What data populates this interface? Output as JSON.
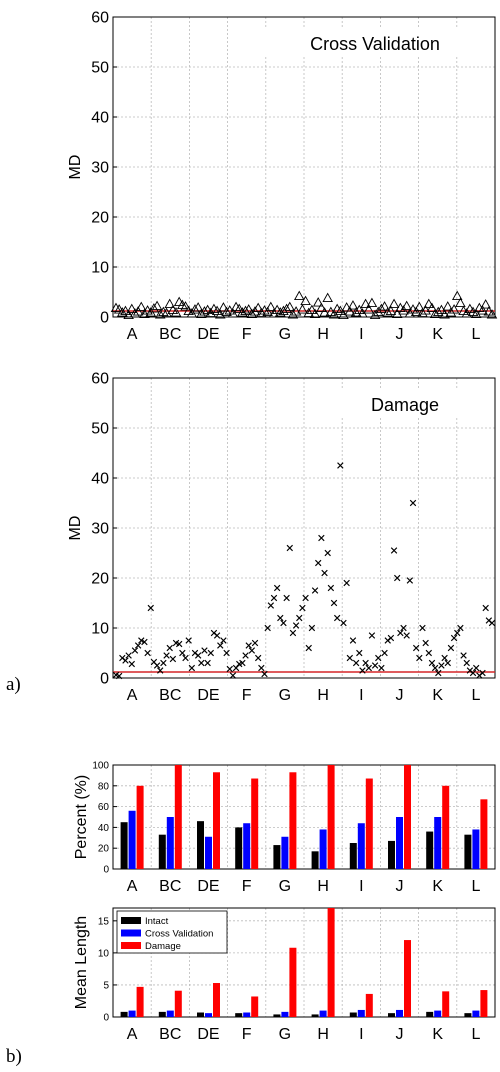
{
  "panel_labels": {
    "a": "a)",
    "b": "b)"
  },
  "colors": {
    "threshold": "#d62728",
    "intact": "#000000",
    "cross_validation": "#0000ff",
    "damage": "#ff0000",
    "grid": "#bbbbbb"
  },
  "chart_data": [
    {
      "type": "scatter",
      "title": "Cross Validation",
      "ylabel": "MD",
      "ylim": [
        0,
        60
      ],
      "yticks": [
        0,
        10,
        20,
        30,
        40,
        50,
        60
      ],
      "categories": [
        "A",
        "BC",
        "DE",
        "F",
        "G",
        "H",
        "I",
        "J",
        "K",
        "L"
      ],
      "grid": true,
      "marker": "triangle",
      "threshold": 1.2,
      "x": [
        1,
        2,
        3,
        4,
        5,
        6,
        7,
        8,
        9,
        10,
        11,
        12,
        13,
        14,
        15,
        16,
        17,
        18,
        19,
        20,
        21,
        22,
        23,
        24,
        25,
        26,
        27,
        28,
        29,
        30,
        31,
        32,
        33,
        34,
        35,
        36,
        37,
        38,
        39,
        40,
        41,
        42,
        43,
        44,
        45,
        46,
        47,
        48,
        49,
        50,
        51,
        52,
        53,
        54,
        55,
        56,
        57,
        58,
        59,
        60,
        61,
        62,
        63,
        64,
        65,
        66,
        67,
        68,
        69,
        70,
        71,
        72,
        73,
        74,
        75,
        76,
        77,
        78,
        79,
        80,
        81,
        82,
        83,
        84,
        85,
        86,
        87,
        88,
        89,
        90,
        91,
        92,
        93,
        94,
        95,
        96,
        97,
        98,
        99,
        100,
        101,
        102,
        103,
        104,
        105,
        106,
        107,
        108,
        109,
        110,
        111,
        112,
        113,
        114,
        115,
        116,
        117,
        118,
        119,
        120
      ],
      "y": [
        1.8,
        1.5,
        0.9,
        1.2,
        0.4,
        1.6,
        0.7,
        1.1,
        2.0,
        0.6,
        1.3,
        0.9,
        1.7,
        2.2,
        0.5,
        1.0,
        0.8,
        2.6,
        1.4,
        0.9,
        3.0,
        2.4,
        2.1,
        1.2,
        0.7,
        1.5,
        1.9,
        0.6,
        1.1,
        1.4,
        0.8,
        1.6,
        1.2,
        0.5,
        1.9,
        1.0,
        1.3,
        0.7,
        2.0,
        1.6,
        0.9,
        1.2,
        1.5,
        0.6,
        1.1,
        1.8,
        0.8,
        1.3,
        1.0,
        2.0,
        0.7,
        1.4,
        0.9,
        1.2,
        1.6,
        2.0,
        0.5,
        1.1,
        4.2,
        1.5,
        3.2,
        0.8,
        1.4,
        0.6,
        2.9,
        1.8,
        0.9,
        3.8,
        1.0,
        0.5,
        1.6,
        1.2,
        0.4,
        1.9,
        1.1,
        2.3,
        0.9,
        1.4,
        0.7,
        2.6,
        1.5,
        2.8,
        0.4,
        1.0,
        1.6,
        2.1,
        0.9,
        1.2,
        2.6,
        0.6,
        1.8,
        1.3,
        2.2,
        0.7,
        1.5,
        1.0,
        2.0,
        0.8,
        1.3,
        2.6,
        1.8,
        0.6,
        1.0,
        1.4,
        0.5,
        2.1,
        0.9,
        1.5,
        4.2,
        2.8,
        1.2,
        0.7,
        1.6,
        1.0,
        0.6,
        1.8,
        1.3,
        2.5,
        1.1,
        0.5
      ]
    },
    {
      "type": "scatter",
      "title": "Damage",
      "ylabel": "MD",
      "ylim": [
        0,
        60
      ],
      "yticks": [
        0,
        10,
        20,
        30,
        40,
        50,
        60
      ],
      "categories": [
        "A",
        "BC",
        "DE",
        "F",
        "G",
        "H",
        "I",
        "J",
        "K",
        "L"
      ],
      "grid": true,
      "marker": "x",
      "threshold": 1.2,
      "x": [
        1,
        2,
        3,
        4,
        5,
        6,
        7,
        8,
        9,
        10,
        11,
        12,
        13,
        14,
        15,
        16,
        17,
        18,
        19,
        20,
        21,
        22,
        23,
        24,
        25,
        26,
        27,
        28,
        29,
        30,
        31,
        32,
        33,
        34,
        35,
        36,
        37,
        38,
        39,
        40,
        41,
        42,
        43,
        44,
        45,
        46,
        47,
        48,
        49,
        50,
        51,
        52,
        53,
        54,
        55,
        56,
        57,
        58,
        59,
        60,
        61,
        62,
        63,
        64,
        65,
        66,
        67,
        68,
        69,
        70,
        71,
        72,
        73,
        74,
        75,
        76,
        77,
        78,
        79,
        80,
        81,
        82,
        83,
        84,
        85,
        86,
        87,
        88,
        89,
        90,
        91,
        92,
        93,
        94,
        95,
        96,
        97,
        98,
        99,
        100,
        101,
        102,
        103,
        104,
        105,
        106,
        107,
        108,
        109,
        110,
        111,
        112,
        113,
        114,
        115,
        116,
        117,
        118,
        119,
        120
      ],
      "y": [
        0.6,
        0.4,
        4.0,
        3.5,
        4.5,
        2.8,
        5.5,
        6.5,
        7.5,
        7.2,
        5.0,
        14.0,
        3.2,
        2.5,
        1.5,
        3.0,
        4.5,
        6.0,
        3.8,
        7.0,
        6.8,
        5.0,
        4.0,
        7.5,
        2.0,
        5.0,
        4.5,
        3.0,
        5.5,
        3.0,
        5.0,
        9.0,
        8.5,
        6.5,
        7.5,
        5.0,
        1.8,
        0.5,
        2.0,
        2.8,
        3.0,
        4.5,
        6.5,
        5.5,
        7.0,
        4.0,
        2.0,
        0.8,
        10.0,
        14.5,
        16.0,
        18.0,
        12.0,
        11.0,
        16.0,
        26.0,
        9.0,
        10.5,
        12.0,
        14.0,
        16.0,
        6.0,
        10.0,
        17.5,
        23.0,
        28.0,
        21.0,
        25.0,
        18.0,
        15.0,
        12.0,
        42.5,
        11.0,
        19.0,
        4.0,
        7.5,
        3.0,
        5.0,
        1.5,
        3.0,
        2.0,
        8.5,
        2.5,
        4.0,
        2.0,
        5.0,
        7.5,
        8.0,
        25.5,
        20.0,
        9.0,
        10.0,
        8.5,
        19.5,
        35.0,
        6.0,
        4.0,
        10.0,
        7.0,
        5.0,
        3.0,
        2.0,
        1.0,
        2.5,
        4.0,
        3.0,
        6.0,
        8.0,
        9.0,
        10.0,
        4.5,
        3.0,
        1.5,
        1.0,
        2.0,
        0.5,
        1.0,
        14.0,
        11.5,
        11.0
      ]
    },
    {
      "type": "bar",
      "ylabel": "Percent (%)",
      "ylim": [
        0,
        100
      ],
      "yticks": [
        0,
        20,
        40,
        60,
        80,
        100
      ],
      "categories": [
        "A",
        "BC",
        "DE",
        "F",
        "G",
        "H",
        "I",
        "J",
        "K",
        "L"
      ],
      "grid": true,
      "series": [
        {
          "name": "Intact",
          "color": "#000000",
          "values": [
            45,
            33,
            46,
            40,
            23,
            17,
            25,
            27,
            36,
            33
          ]
        },
        {
          "name": "Cross Validation",
          "color": "#0000ff",
          "values": [
            56,
            50,
            31,
            44,
            31,
            38,
            44,
            50,
            50,
            38
          ]
        },
        {
          "name": "Damage",
          "color": "#ff0000",
          "values": [
            80,
            100,
            93,
            87,
            93,
            100,
            87,
            100,
            80,
            67
          ]
        }
      ]
    },
    {
      "type": "bar",
      "ylabel": "Mean Length",
      "ylim": [
        0,
        17
      ],
      "yticks": [
        0,
        5,
        10,
        15
      ],
      "categories": [
        "A",
        "BC",
        "DE",
        "F",
        "G",
        "H",
        "I",
        "J",
        "K",
        "L"
      ],
      "grid": true,
      "legend": "top-left",
      "series": [
        {
          "name": "Intact",
          "color": "#000000",
          "values": [
            0.8,
            0.8,
            0.7,
            0.6,
            0.4,
            0.4,
            0.7,
            0.6,
            0.8,
            0.6
          ]
        },
        {
          "name": "Cross Validation",
          "color": "#0000ff",
          "values": [
            1.0,
            1.0,
            0.6,
            0.7,
            0.8,
            1.0,
            1.1,
            1.1,
            1.0,
            1.0
          ]
        },
        {
          "name": "Damage",
          "color": "#ff0000",
          "values": [
            4.7,
            4.1,
            5.3,
            3.2,
            10.8,
            17.0,
            3.6,
            12.0,
            4.0,
            4.2
          ]
        }
      ]
    }
  ]
}
